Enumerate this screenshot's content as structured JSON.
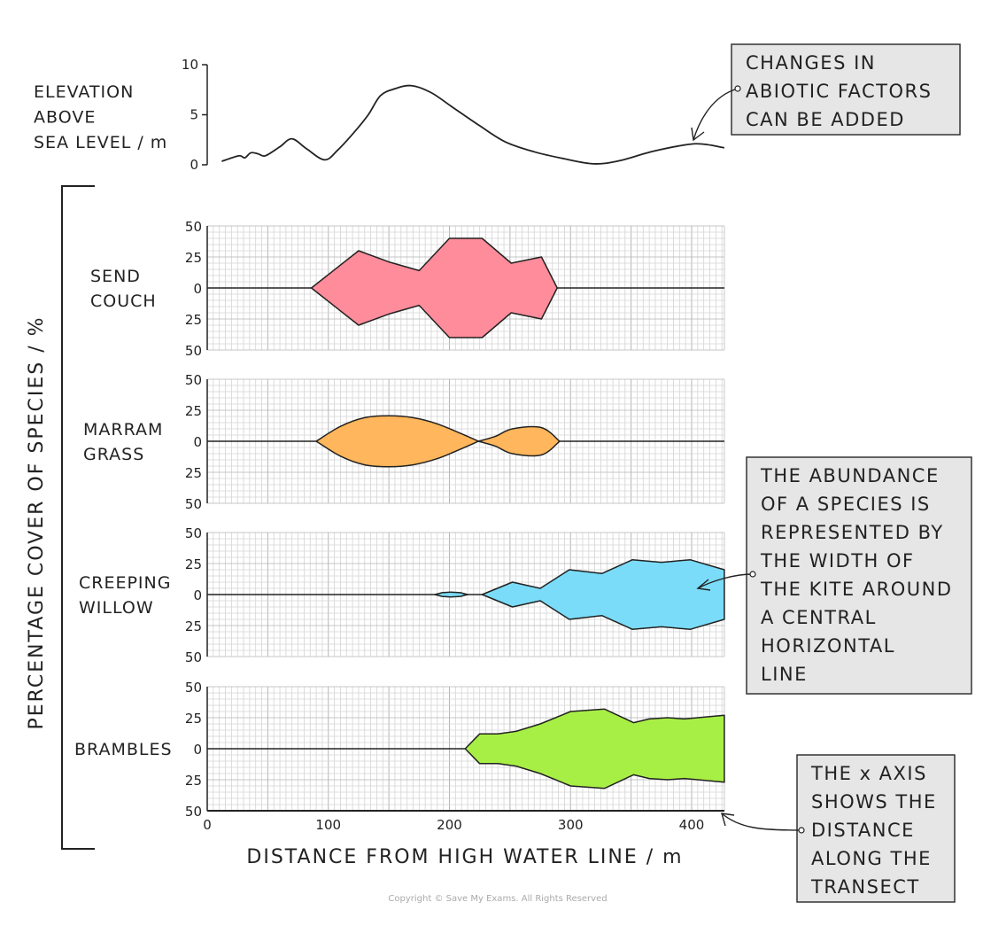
{
  "chart_data": {
    "type": "kite",
    "xlabel": "DISTANCE FROM HIGH WATER LINE / m",
    "ylabel": "PERCENTAGE COVER OF SPECIES / %",
    "x_ticks": [
      "0",
      "100",
      "200",
      "300",
      "400"
    ],
    "xlim": [
      0,
      427
    ],
    "grid": true,
    "elevation": {
      "label_lines": [
        "ELEVATION",
        "ABOVE",
        "SEA LEVEL / m"
      ],
      "y_ticks": [
        "10",
        "5",
        "0"
      ],
      "ylim": [
        0,
        10
      ],
      "points": [
        [
          12,
          0.35
        ],
        [
          26,
          0.9
        ],
        [
          31,
          0.7
        ],
        [
          36,
          1.2
        ],
        [
          42,
          1.1
        ],
        [
          48,
          0.9
        ],
        [
          60,
          1.8
        ],
        [
          70,
          2.6
        ],
        [
          82,
          1.6
        ],
        [
          97,
          0.5
        ],
        [
          108,
          1.5
        ],
        [
          121,
          3.2
        ],
        [
          133,
          5
        ],
        [
          143,
          6.9
        ],
        [
          155,
          7.6
        ],
        [
          169,
          7.9
        ],
        [
          185,
          7.2
        ],
        [
          202,
          5.8
        ],
        [
          225,
          3.9
        ],
        [
          246,
          2.3
        ],
        [
          270,
          1.3
        ],
        [
          295,
          0.6
        ],
        [
          319,
          0.1
        ],
        [
          340,
          0.4
        ],
        [
          370,
          1.4
        ],
        [
          403,
          2.1
        ],
        [
          427,
          1.7
        ]
      ]
    },
    "species": [
      {
        "name_lines": [
          "SEND",
          "COUCH"
        ],
        "color": "#ff8c9a",
        "smooth": false,
        "y_ticks": [
          "50",
          "25",
          "0",
          "25",
          "50"
        ],
        "segments": [
          [
            [
              86,
              0
            ],
            [
              125,
              30
            ],
            [
              150,
              21
            ],
            [
              175,
              14
            ],
            [
              200,
              40
            ],
            [
              227,
              40
            ],
            [
              251,
              20
            ],
            [
              276,
              25
            ],
            [
              289,
              0
            ]
          ]
        ]
      },
      {
        "name_lines": [
          "MARRAM",
          "GRASS"
        ],
        "color": "#ffb65c",
        "smooth": true,
        "y_ticks": [
          "50",
          "25",
          "0",
          "25",
          "50"
        ],
        "segments": [
          [
            [
              90,
              0
            ],
            [
              110,
              12
            ],
            [
              130,
              19
            ],
            [
              150,
              20.5
            ],
            [
              170,
              19
            ],
            [
              190,
              14
            ],
            [
              210,
              6
            ],
            [
              224,
              0
            ]
          ],
          [
            [
              224,
              0
            ],
            [
              238,
              4
            ],
            [
              252,
              10
            ],
            [
              276,
              11
            ],
            [
              291,
              0
            ]
          ]
        ]
      },
      {
        "name_lines": [
          "CREEPING",
          "WILLOW"
        ],
        "color": "#7adcf8",
        "smooth": false,
        "y_ticks": [
          "50",
          "25",
          "0",
          "25",
          "50"
        ],
        "segments": [
          [
            [
              188,
              0
            ],
            [
              194,
              1.5
            ],
            [
              201,
              2
            ],
            [
              209,
              1.5
            ],
            [
              215,
              0
            ]
          ],
          [
            [
              227,
              0
            ],
            [
              252,
              10
            ],
            [
              275,
              5
            ],
            [
              299,
              20
            ],
            [
              326,
              17
            ],
            [
              351,
              28
            ],
            [
              375,
              26
            ],
            [
              399,
              28
            ],
            [
              427,
              20
            ]
          ]
        ]
      },
      {
        "name_lines": [
          "BRAMBLES"
        ],
        "color": "#a8ef45",
        "smooth": false,
        "y_ticks": [
          "50",
          "25",
          "0",
          "25",
          "50"
        ],
        "segments": [
          [
            [
              213,
              0
            ],
            [
              225,
              12
            ],
            [
              240,
              12
            ],
            [
              255,
              14
            ],
            [
              275,
              20
            ],
            [
              300,
              30
            ],
            [
              328,
              32
            ],
            [
              352,
              21
            ],
            [
              365,
              24
            ],
            [
              380,
              25
            ],
            [
              394,
              24
            ],
            [
              427,
              27
            ]
          ]
        ]
      }
    ]
  },
  "annotations": [
    {
      "lines": [
        "CHANGES IN",
        "ABIOTIC FACTORS",
        "CAN BE ADDED"
      ]
    },
    {
      "lines": [
        "THE ABUNDANCE",
        "OF A SPECIES IS",
        "REPRESENTED BY",
        "THE WIDTH OF",
        "THE KITE AROUND",
        "A CENTRAL",
        "HORIZONTAL",
        "LINE"
      ]
    },
    {
      "lines": [
        "THE x AXIS",
        "SHOWS THE",
        "DISTANCE",
        "ALONG THE",
        "TRANSECT"
      ]
    }
  ],
  "copyright": "Copyright © Save My Exams. All Rights Reserved"
}
